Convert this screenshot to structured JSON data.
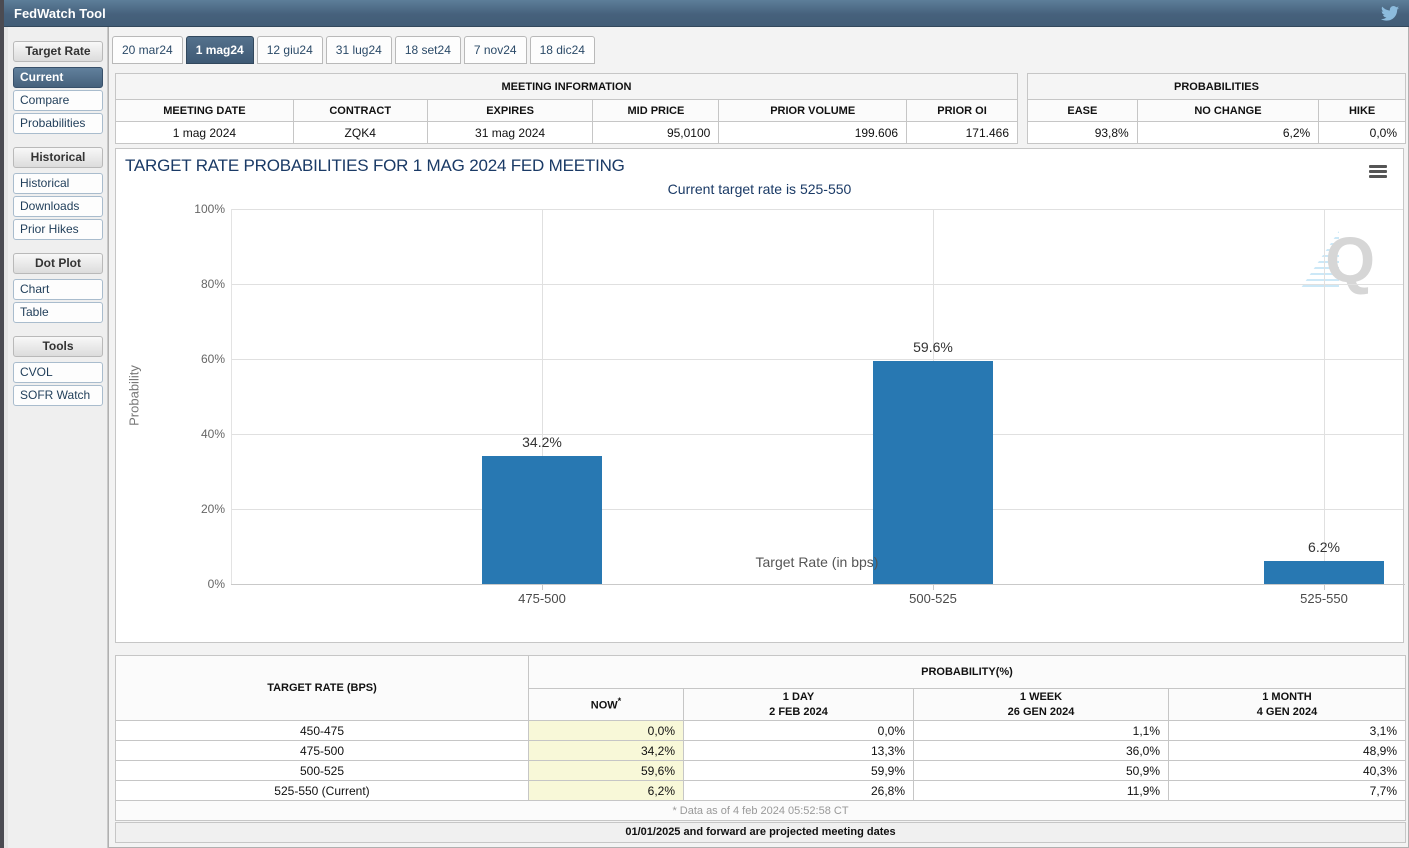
{
  "app": {
    "title": "FedWatch Tool"
  },
  "colors": {
    "accent_slate": "#46617c",
    "bar_blue": "#2878b2",
    "now_highlight": "#f8f8d8",
    "title_navy": "#1a3a66"
  },
  "sidebar": {
    "sections": [
      {
        "header": "Target Rate",
        "items": [
          {
            "label": "Current",
            "selected": true
          },
          {
            "label": "Compare",
            "selected": false
          },
          {
            "label": "Probabilities",
            "selected": false
          }
        ]
      },
      {
        "header": "Historical",
        "items": [
          {
            "label": "Historical",
            "selected": false
          },
          {
            "label": "Downloads",
            "selected": false
          },
          {
            "label": "Prior Hikes",
            "selected": false
          }
        ]
      },
      {
        "header": "Dot Plot",
        "items": [
          {
            "label": "Chart",
            "selected": false
          },
          {
            "label": "Table",
            "selected": false
          }
        ]
      },
      {
        "header": "Tools",
        "items": [
          {
            "label": "CVOL",
            "selected": false
          },
          {
            "label": "SOFR Watch",
            "selected": false
          }
        ]
      }
    ]
  },
  "tabs": [
    {
      "label": "20 mar24",
      "selected": false
    },
    {
      "label": "1 mag24",
      "selected": true
    },
    {
      "label": "12 giu24",
      "selected": false
    },
    {
      "label": "31 lug24",
      "selected": false
    },
    {
      "label": "18 set24",
      "selected": false
    },
    {
      "label": "7 nov24",
      "selected": false
    },
    {
      "label": "18 dic24",
      "selected": false
    }
  ],
  "meeting_information": {
    "title": "MEETING INFORMATION",
    "columns": [
      "MEETING DATE",
      "CONTRACT",
      "EXPIRES",
      "MID PRICE",
      "PRIOR VOLUME",
      "PRIOR OI"
    ],
    "values": [
      "1 mag 2024",
      "ZQK4",
      "31 mag 2024",
      "95,0100",
      "199.606",
      "171.466"
    ]
  },
  "probabilities_summary": {
    "title": "PROBABILITIES",
    "columns": [
      "EASE",
      "NO CHANGE",
      "HIKE"
    ],
    "values": [
      "93,8%",
      "6,2%",
      "0,0%"
    ]
  },
  "chart_data": {
    "type": "bar",
    "title": "TARGET RATE PROBABILITIES FOR 1 MAG 2024 FED MEETING",
    "subtitle": "Current target rate is 525-550",
    "categories": [
      "475-500",
      "500-525",
      "525-550"
    ],
    "values": [
      34.2,
      59.6,
      6.2
    ],
    "value_labels": [
      "34.2%",
      "59.6%",
      "6.2%"
    ],
    "xlabel": "Target Rate (in bps)",
    "ylabel": "Probability",
    "ylim": [
      0,
      100
    ],
    "yticks": [
      "0%",
      "20%",
      "40%",
      "60%",
      "80%",
      "100%"
    ],
    "grid": true,
    "legend": "none",
    "bar_color": "#2878b2"
  },
  "probability_table": {
    "corner_header": "TARGET RATE (BPS)",
    "group_header": "PROBABILITY(%)",
    "columns": [
      {
        "line1": "NOW",
        "sup": "*",
        "line2": ""
      },
      {
        "line1": "1 DAY",
        "line2": "2 FEB 2024"
      },
      {
        "line1": "1 WEEK",
        "line2": "26 GEN 2024"
      },
      {
        "line1": "1 MONTH",
        "line2": "4 GEN 2024"
      }
    ],
    "rows": [
      {
        "label": "450-475",
        "now": "0,0%",
        "day1": "0,0%",
        "week1": "1,1%",
        "month1": "3,1%"
      },
      {
        "label": "475-500",
        "now": "34,2%",
        "day1": "13,3%",
        "week1": "36,0%",
        "month1": "48,9%"
      },
      {
        "label": "500-525",
        "now": "59,6%",
        "day1": "59,9%",
        "week1": "50,9%",
        "month1": "40,3%"
      },
      {
        "label": "525-550 (Current)",
        "now": "6,2%",
        "day1": "26,8%",
        "week1": "11,9%",
        "month1": "7,7%"
      }
    ],
    "footnote": "* Data as of 4 feb 2024 05:52:58 CT"
  },
  "footer": {
    "note": "01/01/2025 and forward are projected meeting dates"
  }
}
